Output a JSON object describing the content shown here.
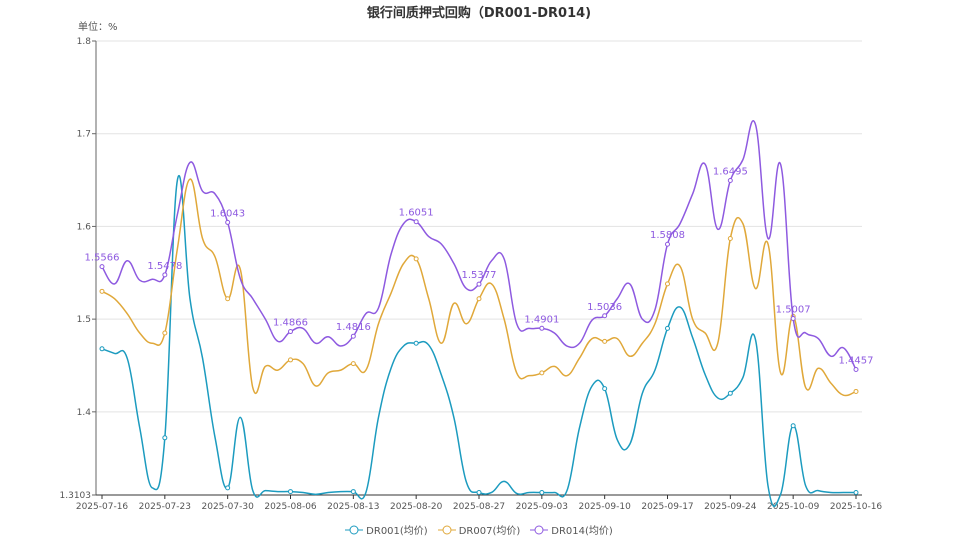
{
  "chart_data": {
    "type": "line",
    "title": "银行间质押式回购（DR001-DR014)",
    "unit_label": "单位：%",
    "ylim": [
      1.3103,
      1.8
    ],
    "yticks": [
      "1.3103",
      "1.4",
      "1.5",
      "1.6",
      "1.7",
      "1.8"
    ],
    "grid": true,
    "legend_position": "bottom",
    "xtick_labels": [
      "2025-07-16",
      "2025-07-23",
      "2025-07-30",
      "2025-08-06",
      "2025-08-13",
      "2025-08-20",
      "2025-08-27",
      "2025-09-03",
      "2025-09-10",
      "2025-09-17",
      "2025-09-24",
      "2025-10-09",
      "2025-10-16"
    ],
    "x": [
      "2025-07-16",
      "2025-07-17",
      "2025-07-18",
      "2025-07-21",
      "2025-07-22",
      "2025-07-23",
      "2025-07-24",
      "2025-07-25",
      "2025-07-28",
      "2025-07-29",
      "2025-07-30",
      "2025-07-31",
      "2025-08-01",
      "2025-08-04",
      "2025-08-05",
      "2025-08-06",
      "2025-08-07",
      "2025-08-08",
      "2025-08-11",
      "2025-08-12",
      "2025-08-13",
      "2025-08-14",
      "2025-08-15",
      "2025-08-18",
      "2025-08-19",
      "2025-08-20",
      "2025-08-21",
      "2025-08-22",
      "2025-08-25",
      "2025-08-26",
      "2025-08-27",
      "2025-08-28",
      "2025-08-29",
      "2025-09-01",
      "2025-09-02",
      "2025-09-03",
      "2025-09-04",
      "2025-09-05",
      "2025-09-08",
      "2025-09-09",
      "2025-09-10",
      "2025-09-11",
      "2025-09-12",
      "2025-09-15",
      "2025-09-16",
      "2025-09-17",
      "2025-09-18",
      "2025-09-19",
      "2025-09-22",
      "2025-09-23",
      "2025-09-24",
      "2025-09-25",
      "2025-09-26",
      "2025-09-29",
      "2025-09-30",
      "2025-10-09",
      "2025-10-10",
      "2025-10-13",
      "2025-10-14",
      "2025-10-15",
      "2025-10-16"
    ],
    "series": [
      {
        "name": "DR001(均价)",
        "color": "#1c9bbf",
        "labels": false,
        "values": [
          1.468,
          1.463,
          1.458,
          1.383,
          1.318,
          1.372,
          1.65,
          1.522,
          1.458,
          1.372,
          1.318,
          1.394,
          1.315,
          1.315,
          1.314,
          1.314,
          1.313,
          1.311,
          1.313,
          1.314,
          1.314,
          1.313,
          1.394,
          1.447,
          1.471,
          1.474,
          1.472,
          1.44,
          1.394,
          1.324,
          1.313,
          1.313,
          1.325,
          1.312,
          1.313,
          1.313,
          1.313,
          1.315,
          1.383,
          1.428,
          1.425,
          1.37,
          1.365,
          1.42,
          1.445,
          1.49,
          1.513,
          1.48,
          1.44,
          1.415,
          1.42,
          1.437,
          1.478,
          1.32,
          1.311,
          1.385,
          1.32,
          1.315,
          1.313,
          1.313,
          1.313
        ]
      },
      {
        "name": "DR007(均价)",
        "color": "#e0a83a",
        "labels": false,
        "values": [
          1.53,
          1.522,
          1.506,
          1.485,
          1.474,
          1.485,
          1.576,
          1.651,
          1.587,
          1.567,
          1.522,
          1.554,
          1.426,
          1.449,
          1.445,
          1.456,
          1.452,
          1.428,
          1.442,
          1.445,
          1.452,
          1.445,
          1.495,
          1.528,
          1.56,
          1.565,
          1.522,
          1.474,
          1.517,
          1.495,
          1.522,
          1.538,
          1.5,
          1.442,
          1.439,
          1.442,
          1.449,
          1.439,
          1.458,
          1.479,
          1.476,
          1.479,
          1.46,
          1.474,
          1.495,
          1.538,
          1.557,
          1.5,
          1.485,
          1.474,
          1.587,
          1.603,
          1.533,
          1.581,
          1.442,
          1.503,
          1.426,
          1.447,
          1.431,
          1.418,
          1.422
        ]
      },
      {
        "name": "DR014(均价)",
        "color": "#8e5ae0",
        "labels": true,
        "values": [
          1.5566,
          1.538,
          1.563,
          1.542,
          1.543,
          1.5478,
          1.613,
          1.669,
          1.638,
          1.635,
          1.6043,
          1.544,
          1.522,
          1.5,
          1.476,
          1.4866,
          1.49,
          1.474,
          1.481,
          1.471,
          1.4816,
          1.506,
          1.512,
          1.57,
          1.603,
          1.6051,
          1.589,
          1.581,
          1.56,
          1.533,
          1.5377,
          1.563,
          1.565,
          1.495,
          1.49,
          1.4901,
          1.485,
          1.471,
          1.474,
          1.499,
          1.5036,
          1.522,
          1.538,
          1.5,
          1.51,
          1.5808,
          1.603,
          1.635,
          1.667,
          1.597,
          1.6495,
          1.672,
          1.71,
          1.587,
          1.667,
          1.5007,
          1.485,
          1.479,
          1.46,
          1.469,
          1.4457
        ]
      }
    ]
  }
}
